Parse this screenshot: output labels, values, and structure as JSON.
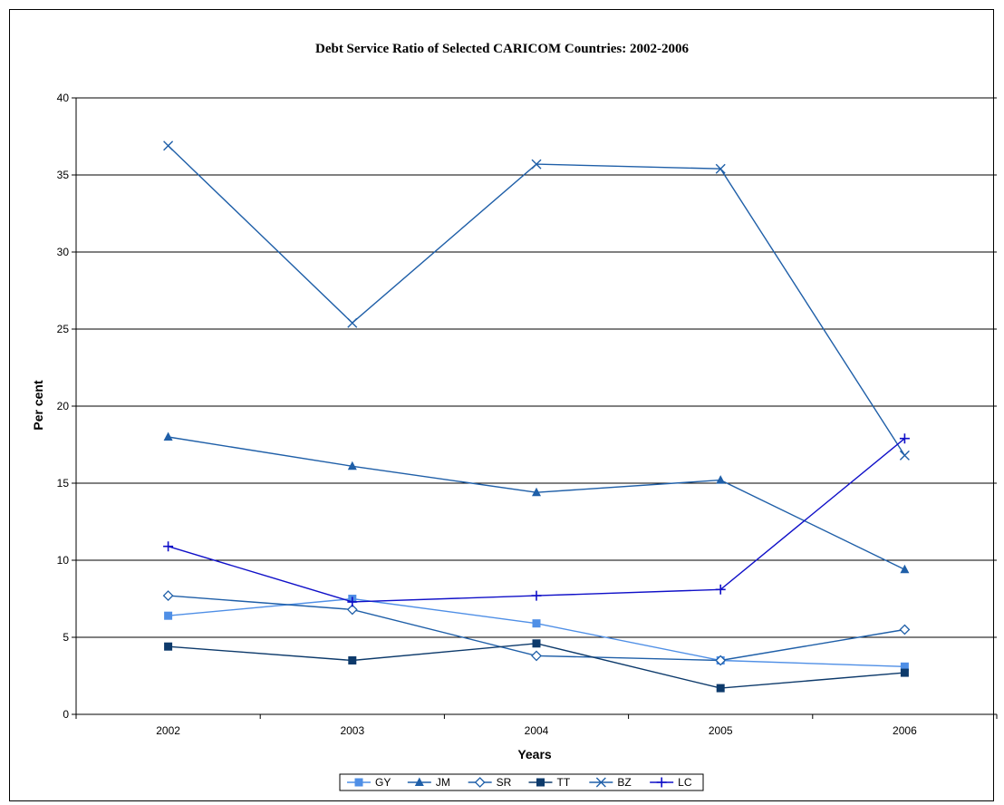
{
  "chart_data": {
    "type": "line",
    "title": "Debt Service Ratio of Selected CARICOM Countries: 2002-2006",
    "xlabel": "Years",
    "ylabel": "Per cent",
    "ylim": [
      0,
      40
    ],
    "yticks": [
      "0",
      "5",
      "10",
      "15",
      "20",
      "25",
      "30",
      "35",
      "40"
    ],
    "categories": [
      "2002",
      "2003",
      "2004",
      "2005",
      "2006"
    ],
    "grid": true,
    "legend_position": "bottom",
    "series": [
      {
        "name": "GY",
        "color": "#4f8fe6",
        "marker": "square",
        "values": [
          6.4,
          7.5,
          5.9,
          3.5,
          3.1
        ]
      },
      {
        "name": "JM",
        "color": "#1f5fa8",
        "marker": "triangle",
        "values": [
          18.0,
          16.1,
          14.4,
          15.2,
          9.4
        ]
      },
      {
        "name": "SR",
        "color": "#1f5fa8",
        "marker": "diamond-open",
        "values": [
          7.7,
          6.8,
          3.8,
          3.5,
          5.5
        ]
      },
      {
        "name": "TT",
        "color": "#0d3a6b",
        "marker": "square",
        "values": [
          4.4,
          3.5,
          4.6,
          1.7,
          2.7
        ]
      },
      {
        "name": "BZ",
        "color": "#1f5fa8",
        "marker": "x",
        "values": [
          36.9,
          25.4,
          35.7,
          35.4,
          16.8
        ]
      },
      {
        "name": "LC",
        "color": "#1010c8",
        "marker": "plus",
        "values": [
          10.9,
          7.3,
          7.7,
          8.1,
          17.9
        ]
      }
    ]
  }
}
